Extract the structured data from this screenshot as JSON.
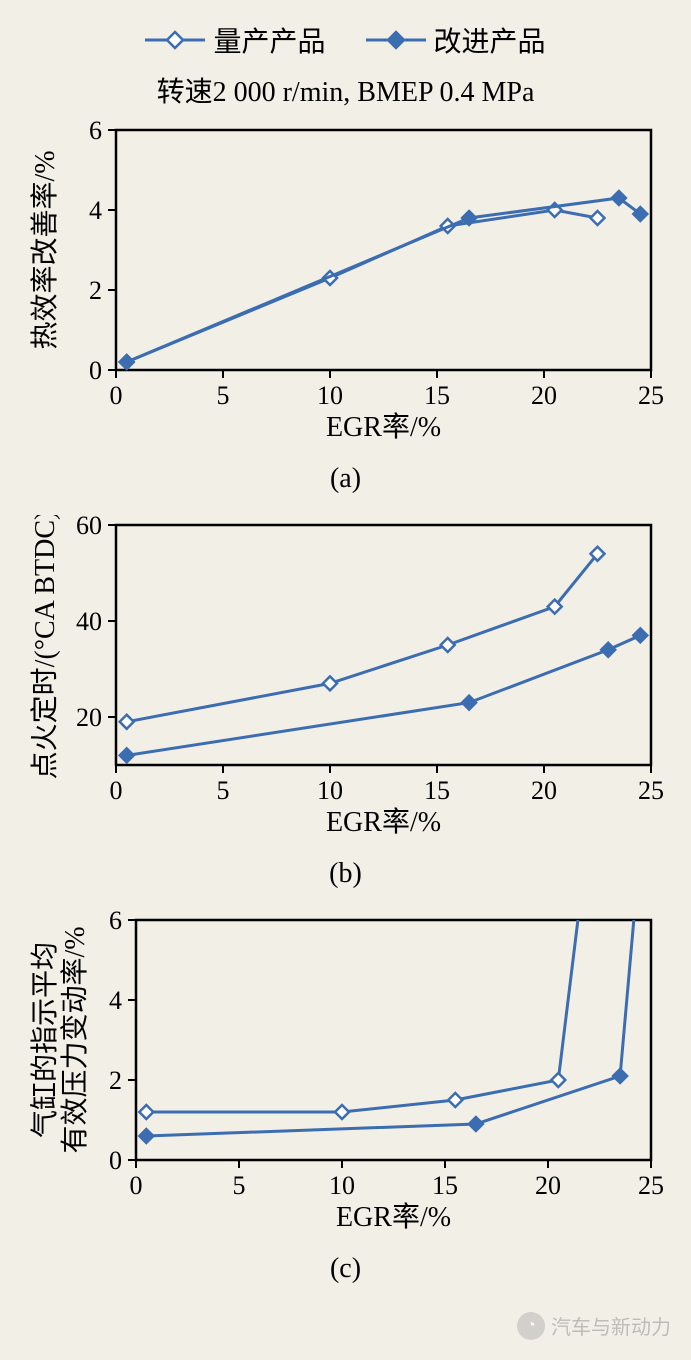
{
  "legend": {
    "series1": "量产产品",
    "series2": "改进产品"
  },
  "subtitle": "转速2 000 r/min, BMEP 0.4 MPa",
  "colors": {
    "line": "#3c6db0",
    "marker_fill_open": "#ffffff",
    "marker_fill_solid": "#3c6db0",
    "axis": "#000000",
    "bg": "#f2efe7"
  },
  "marker": {
    "open_shape": "diamond-open",
    "solid_shape": "diamond-solid",
    "size": 14
  },
  "line_width": 3,
  "axis_fontsize": 26,
  "label_fontsize": 28,
  "chart_a": {
    "type": "line",
    "ylabel": "热效率改善率/%",
    "xlabel": "EGR率/%",
    "sublabel": "(a)",
    "xlim": [
      0,
      25
    ],
    "ylim": [
      0,
      6
    ],
    "xticks": [
      0,
      5,
      10,
      15,
      20,
      25
    ],
    "yticks": [
      0,
      2,
      4,
      6
    ],
    "series1": {
      "x": [
        0.5,
        10,
        15.5,
        20.5,
        22.5
      ],
      "y": [
        0.2,
        2.3,
        3.6,
        4.0,
        3.8
      ]
    },
    "series2": {
      "x": [
        0.5,
        16.5,
        23.5,
        24.5
      ],
      "y": [
        0.2,
        3.8,
        4.3,
        3.9
      ]
    }
  },
  "chart_b": {
    "type": "line",
    "ylabel": "点火定时/(°CA BTDC)",
    "xlabel": "EGR率/%",
    "sublabel": "(b)",
    "xlim": [
      0,
      25
    ],
    "ylim": [
      10,
      60
    ],
    "xticks": [
      0,
      5,
      10,
      15,
      20,
      25
    ],
    "yticks": [
      20,
      40,
      60
    ],
    "series1": {
      "x": [
        0.5,
        10,
        15.5,
        20.5,
        22.5
      ],
      "y": [
        19,
        27,
        35,
        43,
        54
      ]
    },
    "series2": {
      "x": [
        0.5,
        16.5,
        23,
        24.5
      ],
      "y": [
        12,
        23,
        34,
        37
      ]
    }
  },
  "chart_c": {
    "type": "line",
    "ylabel": "气缸的指示平均\n有效压力变动率/%",
    "xlabel": "EGR率/%",
    "sublabel": "(c)",
    "xlim": [
      0,
      25
    ],
    "ylim": [
      0,
      6
    ],
    "xticks": [
      0,
      5,
      10,
      15,
      20,
      25
    ],
    "yticks": [
      0,
      2,
      4,
      6
    ],
    "series1": {
      "x": [
        0.5,
        10,
        15.5,
        20.5,
        21.5
      ],
      "y": [
        1.2,
        1.2,
        1.5,
        2.0,
        6.2
      ]
    },
    "series2": {
      "x": [
        0.5,
        16.5,
        23.5,
        24.2
      ],
      "y": [
        0.6,
        0.9,
        2.1,
        6.2
      ]
    }
  },
  "watermark": {
    "text": "汽车与新动力",
    "icon": "◔"
  }
}
